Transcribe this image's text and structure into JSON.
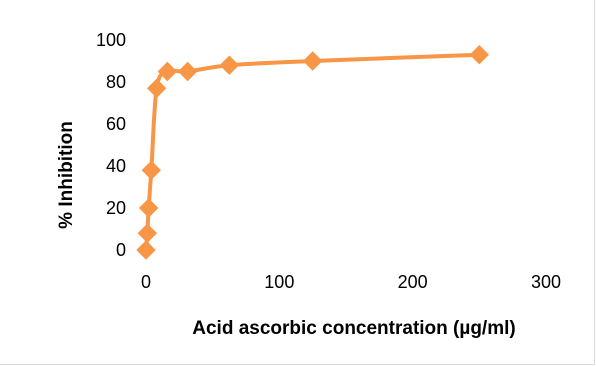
{
  "chart_data": {
    "type": "scatter",
    "title": "",
    "xlabel": "Acid ascorbic concentration (µg/ml)",
    "ylabel": "% Inhibition",
    "xlim": [
      0,
      300
    ],
    "ylim": [
      0,
      100
    ],
    "xticks": [
      0,
      100,
      200,
      300
    ],
    "yticks": [
      0,
      20,
      40,
      60,
      80,
      100
    ],
    "grid": false,
    "legend": "none",
    "series": [
      {
        "x": [
          0,
          1,
          2,
          4,
          8,
          16,
          31.25,
          62.5,
          125,
          250
        ],
        "y": [
          0,
          8,
          20,
          38,
          77,
          85,
          85,
          88,
          90,
          93
        ],
        "color": "#f79646",
        "line": "smooth",
        "marker": "diamond"
      }
    ]
  }
}
